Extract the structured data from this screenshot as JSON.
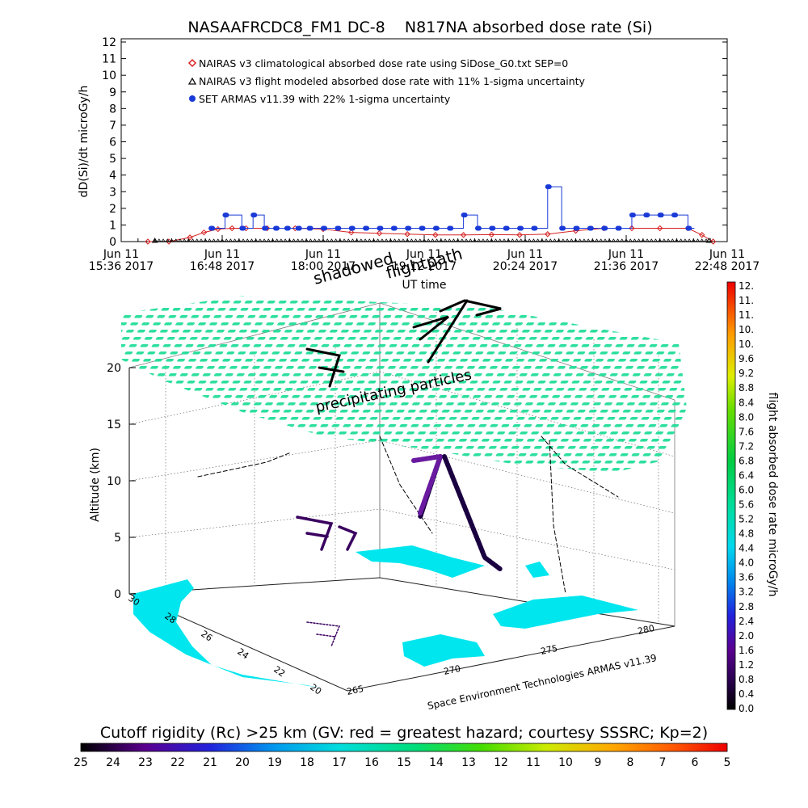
{
  "chart_data": [
    {
      "type": "line",
      "title": "NASAAFRCDC8_FM1 DC-8    N817NA absorbed dose rate (Si)",
      "xlabel": "UT time",
      "ylabel": "dD(Si)/dt microGy/h",
      "ylim": [
        0,
        12
      ],
      "yticks": [
        "0",
        "1",
        "2",
        "3",
        "4",
        "5",
        "6",
        "7",
        "8",
        "9",
        "10",
        "11",
        "12"
      ],
      "xticks": [
        {
          "day": "Jun 11",
          "time": "15:36 2017"
        },
        {
          "day": "Jun 11",
          "time": "16:48 2017"
        },
        {
          "day": "Jun 11",
          "time": "18:00 2017"
        },
        {
          "day": "Jun 11",
          "time": "19:12 2017"
        },
        {
          "day": "Jun 11",
          "time": "20:24 2017"
        },
        {
          "day": "Jun 11",
          "time": "21:36 2017"
        },
        {
          "day": "Jun 11",
          "time": "22:48 2017"
        }
      ],
      "xlim_minutes_ut": [
        936,
        1368
      ],
      "legend_position": "top-left",
      "series": [
        {
          "name": "NAIRAS v3 climatological absorbed dose rate using SiDose_G0.txt SEP=0",
          "color": "#d62020",
          "marker": "diamond",
          "x_minutes_ut": [
            955,
            970,
            985,
            995,
            1005,
            1015,
            1025,
            1040,
            1060,
            1080,
            1100,
            1120,
            1140,
            1160,
            1180,
            1200,
            1220,
            1240,
            1260,
            1280,
            1300,
            1320,
            1340,
            1350,
            1358
          ],
          "values": [
            0,
            0,
            0.25,
            0.55,
            0.75,
            0.8,
            0.8,
            0.8,
            0.8,
            0.75,
            0.55,
            0.5,
            0.45,
            0.4,
            0.4,
            0.42,
            0.4,
            0.45,
            0.65,
            0.8,
            0.8,
            0.8,
            0.8,
            0.4,
            0
          ]
        },
        {
          "name": "NAIRAS v3 flight modeled absorbed dose rate with 11% 1-sigma uncertainty",
          "color": "#111111",
          "marker": "triangle",
          "x_minutes_ut": [
            960,
            1355
          ],
          "values": [
            0,
            0
          ]
        },
        {
          "name": "SET ARMAS v11.39 with 22% 1-sigma uncertainty",
          "color": "#1a3ad8",
          "marker": "circle",
          "x_minutes_ut": [
            1000,
            1010,
            1022,
            1030,
            1038,
            1046,
            1054,
            1062,
            1070,
            1080,
            1090,
            1100,
            1110,
            1120,
            1130,
            1140,
            1150,
            1160,
            1170,
            1180,
            1190,
            1200,
            1210,
            1220,
            1230,
            1240,
            1250,
            1260,
            1270,
            1280,
            1290,
            1300,
            1310,
            1320,
            1330,
            1340
          ],
          "values": [
            0.8,
            1.6,
            0.8,
            1.6,
            0.8,
            0.8,
            0.8,
            0.8,
            0.8,
            0.8,
            0.8,
            0.8,
            0.8,
            0.8,
            0.8,
            0.8,
            0.8,
            0.8,
            0.8,
            1.6,
            0.8,
            0.8,
            0.8,
            0.8,
            0.8,
            3.3,
            0.8,
            0.8,
            0.8,
            0.8,
            0.8,
            1.6,
            1.6,
            1.6,
            1.6,
            0.8
          ]
        }
      ]
    },
    {
      "type": "scatter",
      "zlabel": "Altitude (km)",
      "zticks": [
        "0",
        "5",
        "10",
        "15",
        "20"
      ],
      "lat_ticks": [
        "30",
        "28",
        "26",
        "24",
        "22",
        "20"
      ],
      "lon_ticks": [
        "265",
        "270",
        "275",
        "280"
      ],
      "annotations": [
        "flightpath",
        "shadowed",
        "precipitating particles"
      ],
      "credit": "Space Environment Technologies ARMAS v11.39"
    },
    {
      "type": "colorbar",
      "title": "flight absorbed dose rate microGy/h",
      "ticks": [
        "12.",
        "11.",
        "11.",
        "10.",
        "10.",
        "9.6",
        "9.2",
        "8.8",
        "8.4",
        "8.0",
        "7.6",
        "7.2",
        "6.8",
        "6.4",
        "6.0",
        "5.6",
        "5.2",
        "4.8",
        "4.4",
        "4.0",
        "3.6",
        "3.2",
        "2.8",
        "2.4",
        "2.0",
        "1.6",
        "1.2",
        "0.8",
        "0.4",
        "0.0"
      ],
      "range": [
        0,
        12
      ]
    },
    {
      "type": "colorbar",
      "title": "Cutoff rigidity (Rc) >25 km (GV: red = greatest hazard; courtesy SSSRC; Kp=2)",
      "ticks": [
        "25",
        "24",
        "23",
        "22",
        "21",
        "20",
        "19",
        "18",
        "17",
        "16",
        "15",
        "14",
        "13",
        "12",
        "11",
        "10",
        "9",
        "8",
        "7",
        "6",
        "5"
      ],
      "range": [
        25,
        5
      ]
    }
  ],
  "colors": {
    "land": "#00e6ee",
    "precipitating": "#22dd99",
    "background": "#ffffff"
  }
}
